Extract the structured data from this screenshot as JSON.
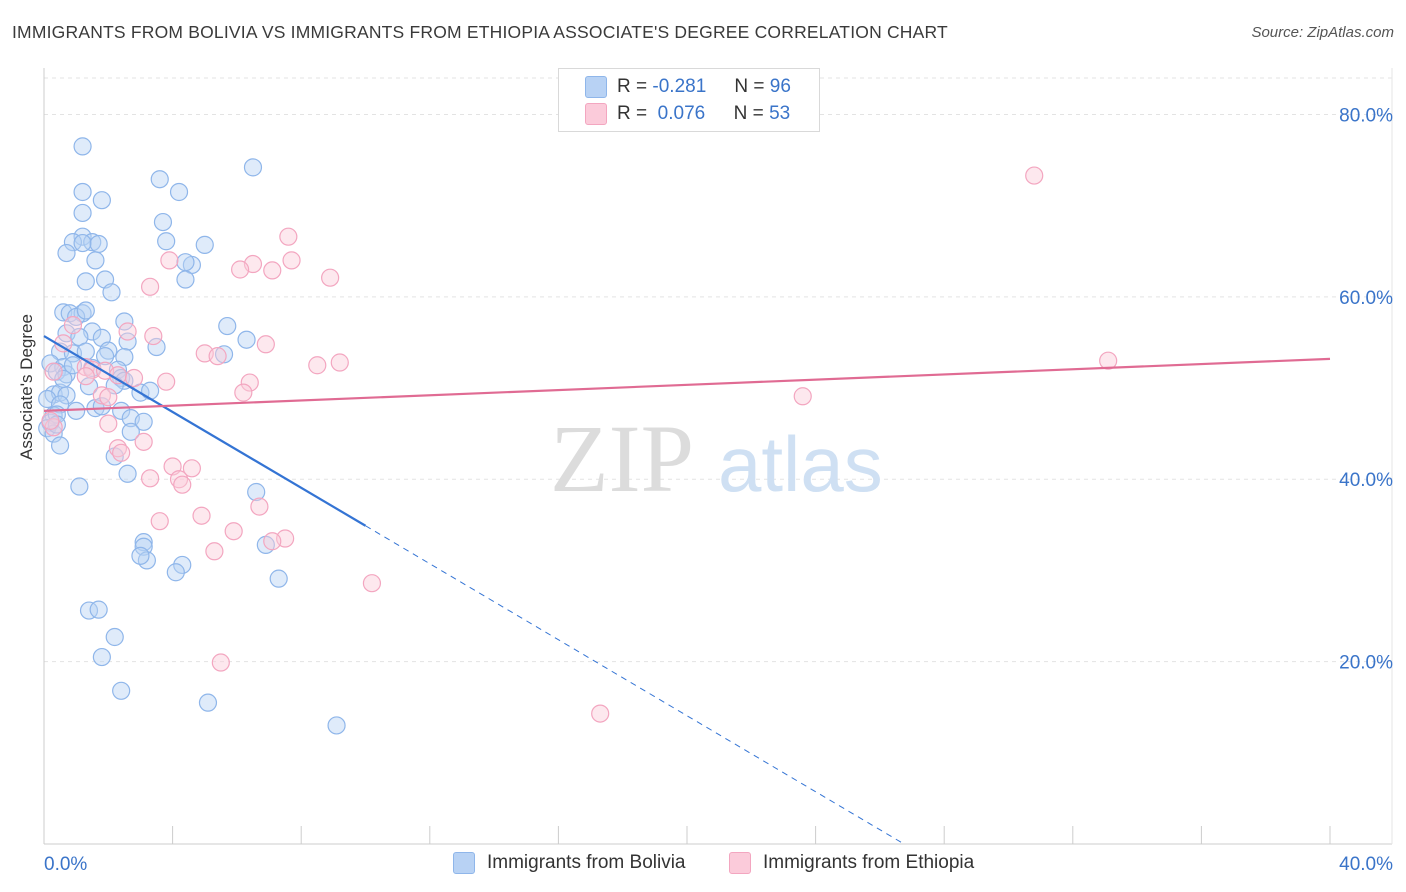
{
  "title": "IMMIGRANTS FROM BOLIVIA VS IMMIGRANTS FROM ETHIOPIA ASSOCIATE'S DEGREE CORRELATION CHART",
  "source": "Source: ZipAtlas.com",
  "watermark": {
    "zip": "ZIP",
    "atlas": "atlas"
  },
  "legend_stats": [
    {
      "r_label": "R =",
      "r_value": "-0.281",
      "n_label": "N =",
      "n_value": "96"
    },
    {
      "r_label": "R =",
      "r_value": "0.076",
      "n_label": "N =",
      "n_value": "53"
    }
  ],
  "chart_data": {
    "type": "scatter",
    "title": "IMMIGRANTS FROM BOLIVIA VS IMMIGRANTS FROM ETHIOPIA ASSOCIATE'S DEGREE CORRELATION CHART",
    "xlabel": "",
    "ylabel": "Associate's Degree",
    "xlim": [
      0,
      40
    ],
    "ylim": [
      0,
      84
    ],
    "x_tick_labels": [
      "0.0%",
      "40.0%"
    ],
    "y_ticks": [
      20,
      40,
      60,
      80
    ],
    "y_tick_labels": [
      "20.0%",
      "40.0%",
      "60.0%",
      "80.0%"
    ],
    "grid": true,
    "series": [
      {
        "name": "Immigrants from Bolivia",
        "color": "#8fb6ea",
        "line_color": "#3474d4",
        "trend": {
          "x0": 0.0,
          "y0": 55.7,
          "x1": 10.0,
          "y1": 34.9,
          "dash_x1": 28.0,
          "dash_y1": -2.6
        },
        "points": [
          [
            1.2,
            76.5
          ],
          [
            6.5,
            74.2
          ],
          [
            1.2,
            71.5
          ],
          [
            3.6,
            72.9
          ],
          [
            1.8,
            70.6
          ],
          [
            3.7,
            68.2
          ],
          [
            1.2,
            69.2
          ],
          [
            3.8,
            66.1
          ],
          [
            1.2,
            66.6
          ],
          [
            0.9,
            66.0
          ],
          [
            0.7,
            64.8
          ],
          [
            1.5,
            66.0
          ],
          [
            1.2,
            65.9
          ],
          [
            1.7,
            65.8
          ],
          [
            5.0,
            65.7
          ],
          [
            4.2,
            71.5
          ],
          [
            1.6,
            64.0
          ],
          [
            4.6,
            63.5
          ],
          [
            1.3,
            61.7
          ],
          [
            1.9,
            61.9
          ],
          [
            4.4,
            63.8
          ],
          [
            4.4,
            61.9
          ],
          [
            2.1,
            60.5
          ],
          [
            0.6,
            58.3
          ],
          [
            0.8,
            58.2
          ],
          [
            1.2,
            58.2
          ],
          [
            1.0,
            57.8
          ],
          [
            1.3,
            58.5
          ],
          [
            2.5,
            57.3
          ],
          [
            5.7,
            56.8
          ],
          [
            1.5,
            56.2
          ],
          [
            0.7,
            56.0
          ],
          [
            1.1,
            55.6
          ],
          [
            1.8,
            55.5
          ],
          [
            2.6,
            55.1
          ],
          [
            3.5,
            54.5
          ],
          [
            6.3,
            55.3
          ],
          [
            0.5,
            54.0
          ],
          [
            0.9,
            53.8
          ],
          [
            1.3,
            54.0
          ],
          [
            2.0,
            54.1
          ],
          [
            1.9,
            53.5
          ],
          [
            2.5,
            53.4
          ],
          [
            5.6,
            53.7
          ],
          [
            0.2,
            52.7
          ],
          [
            0.6,
            52.3
          ],
          [
            1.5,
            52.2
          ],
          [
            2.3,
            52.0
          ],
          [
            0.4,
            51.8
          ],
          [
            0.7,
            51.5
          ],
          [
            2.4,
            51.1
          ],
          [
            2.5,
            50.8
          ],
          [
            2.2,
            50.3
          ],
          [
            1.4,
            50.2
          ],
          [
            0.3,
            49.3
          ],
          [
            0.5,
            49.5
          ],
          [
            0.7,
            49.2
          ],
          [
            3.0,
            49.5
          ],
          [
            3.3,
            49.7
          ],
          [
            0.1,
            48.8
          ],
          [
            0.5,
            48.2
          ],
          [
            1.6,
            47.8
          ],
          [
            2.4,
            47.5
          ],
          [
            0.3,
            47.0
          ],
          [
            0.2,
            46.2
          ],
          [
            0.4,
            47.1
          ],
          [
            2.7,
            46.7
          ],
          [
            3.1,
            46.3
          ],
          [
            0.1,
            45.6
          ],
          [
            0.3,
            45.0
          ],
          [
            2.7,
            45.2
          ],
          [
            0.5,
            43.7
          ],
          [
            2.2,
            42.5
          ],
          [
            2.6,
            40.6
          ],
          [
            1.1,
            39.2
          ],
          [
            6.6,
            38.6
          ],
          [
            3.1,
            33.1
          ],
          [
            3.1,
            32.6
          ],
          [
            3.2,
            31.1
          ],
          [
            4.3,
            30.6
          ],
          [
            4.1,
            29.8
          ],
          [
            6.9,
            32.8
          ],
          [
            7.3,
            29.1
          ],
          [
            1.4,
            25.6
          ],
          [
            1.7,
            25.7
          ],
          [
            2.2,
            22.7
          ],
          [
            1.8,
            20.5
          ],
          [
            2.4,
            16.8
          ],
          [
            5.1,
            15.5
          ],
          [
            9.1,
            13.0
          ],
          [
            3.0,
            31.6
          ],
          [
            0.9,
            52.5
          ],
          [
            0.4,
            46.0
          ],
          [
            1.0,
            47.5
          ],
          [
            0.6,
            51.0
          ],
          [
            1.8,
            48.0
          ]
        ]
      },
      {
        "name": "Immigrants from Ethiopia",
        "color": "#f3a6c0",
        "line_color": "#e06b93",
        "trend": {
          "x0": 0.0,
          "y0": 47.5,
          "x1": 40.0,
          "y1": 53.2
        },
        "points": [
          [
            30.8,
            73.3
          ],
          [
            7.6,
            66.6
          ],
          [
            3.9,
            64.0
          ],
          [
            7.7,
            64.0
          ],
          [
            6.5,
            63.6
          ],
          [
            6.1,
            63.0
          ],
          [
            7.1,
            62.9
          ],
          [
            8.9,
            62.1
          ],
          [
            3.3,
            61.1
          ],
          [
            0.9,
            56.9
          ],
          [
            2.6,
            56.2
          ],
          [
            3.4,
            55.7
          ],
          [
            6.9,
            54.8
          ],
          [
            5.0,
            53.8
          ],
          [
            5.4,
            53.5
          ],
          [
            9.2,
            52.8
          ],
          [
            8.5,
            52.5
          ],
          [
            33.1,
            53.0
          ],
          [
            1.3,
            52.3
          ],
          [
            1.5,
            52.0
          ],
          [
            1.9,
            51.9
          ],
          [
            1.3,
            51.3
          ],
          [
            2.3,
            51.4
          ],
          [
            2.8,
            51.1
          ],
          [
            3.8,
            50.7
          ],
          [
            6.4,
            50.6
          ],
          [
            1.8,
            49.2
          ],
          [
            6.2,
            49.5
          ],
          [
            2.0,
            49.0
          ],
          [
            23.6,
            49.1
          ],
          [
            2.0,
            46.1
          ],
          [
            2.3,
            43.4
          ],
          [
            2.4,
            42.9
          ],
          [
            3.1,
            44.1
          ],
          [
            0.3,
            45.7
          ],
          [
            4.0,
            41.4
          ],
          [
            3.3,
            40.1
          ],
          [
            4.6,
            41.2
          ],
          [
            4.2,
            40.0
          ],
          [
            4.3,
            39.4
          ],
          [
            0.2,
            46.4
          ],
          [
            6.7,
            37.0
          ],
          [
            4.9,
            36.0
          ],
          [
            3.6,
            35.4
          ],
          [
            5.9,
            34.3
          ],
          [
            5.3,
            32.1
          ],
          [
            7.5,
            33.5
          ],
          [
            7.1,
            33.2
          ],
          [
            10.2,
            28.6
          ],
          [
            5.5,
            19.9
          ],
          [
            17.3,
            14.3
          ],
          [
            0.6,
            54.9
          ],
          [
            0.3,
            51.8
          ]
        ]
      }
    ]
  }
}
